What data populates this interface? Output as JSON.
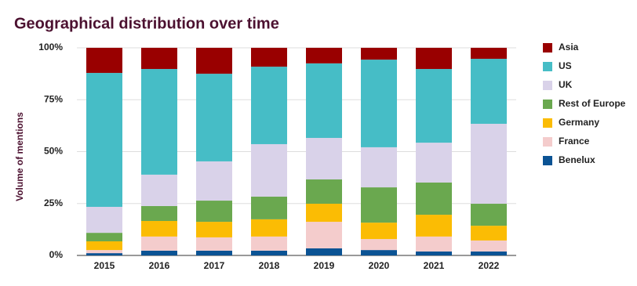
{
  "chart_data": {
    "type": "stacked_bar",
    "title": "Geographical distribution over time",
    "y_label": "Volume of mentions",
    "categories": [
      "2015",
      "2016",
      "2017",
      "2018",
      "2019",
      "2020",
      "2021",
      "2022"
    ],
    "series": [
      {
        "name": "Asia",
        "color": "#990000",
        "values": [
          12.1,
          10.2,
          12.5,
          9.1,
          7.5,
          5.7,
          10.2,
          5.3
        ]
      },
      {
        "name": "US",
        "color": "#46bdc6",
        "values": [
          64.5,
          50.9,
          42.2,
          37.3,
          35.9,
          42.2,
          35.5,
          31.3
        ]
      },
      {
        "name": "UK",
        "color": "#d9d2e9",
        "values": [
          12.5,
          15.1,
          18.9,
          25.3,
          20.0,
          19.3,
          19.2,
          38.5
        ]
      },
      {
        "name": "Rest of Europe",
        "color": "#6aa84f",
        "values": [
          4.1,
          7.2,
          10.2,
          10.9,
          11.7,
          17.0,
          15.5,
          10.6
        ]
      },
      {
        "name": "Germany",
        "color": "#fbbc04",
        "values": [
          4.2,
          7.5,
          7.5,
          8.3,
          8.7,
          7.9,
          10.5,
          7.1
        ]
      },
      {
        "name": "France",
        "color": "#f4cccc",
        "values": [
          1.5,
          6.8,
          6.4,
          6.8,
          12.8,
          5.3,
          7.2,
          5.3
        ]
      },
      {
        "name": "Benelux",
        "color": "#0b5394",
        "values": [
          1.1,
          2.3,
          2.3,
          2.3,
          3.4,
          2.6,
          1.9,
          1.9
        ]
      }
    ],
    "ylim": [
      0,
      100
    ],
    "yticks": [
      {
        "value": 0,
        "label": "0%"
      },
      {
        "value": 25,
        "label": "25%"
      },
      {
        "value": 50,
        "label": "50%"
      },
      {
        "value": 75,
        "label": "75%"
      },
      {
        "value": 100,
        "label": "100%"
      }
    ],
    "grid": true,
    "legend_position": "right"
  }
}
